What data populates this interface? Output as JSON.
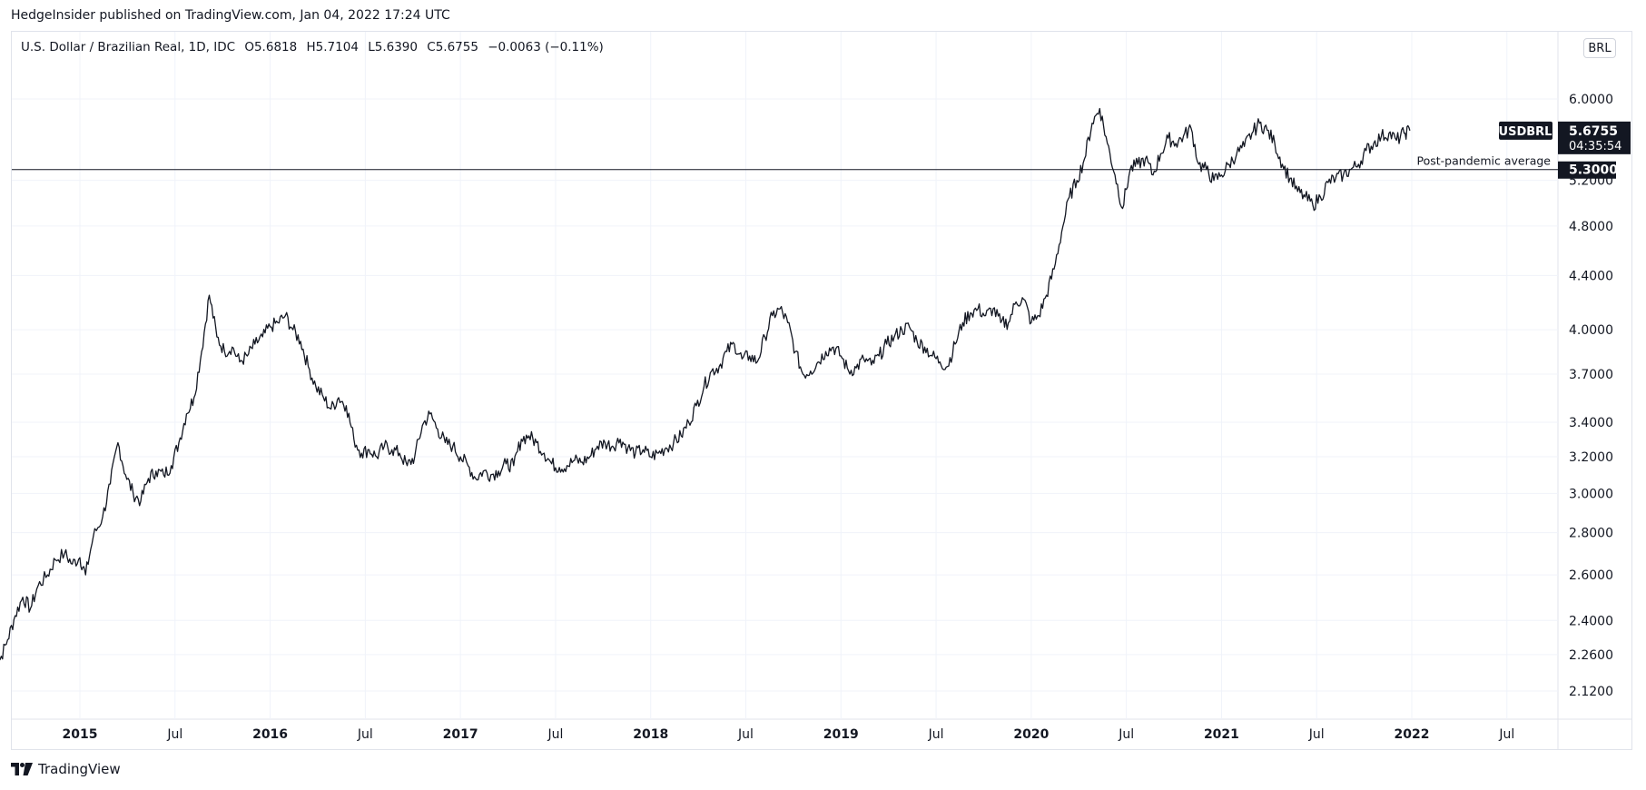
{
  "header": {
    "published": "HedgeInsider published on TradingView.com, Jan 04, 2022 17:24 UTC"
  },
  "legend": {
    "title": "U.S. Dollar / Brazilian Real, 1D, IDC",
    "open": "O5.6818",
    "high": "H5.7104",
    "low": "L5.6390",
    "close": "C5.6755",
    "change": "−0.0063 (−0.11%)"
  },
  "currency_button": "BRL",
  "price_badge": {
    "symbol": "USDBRL",
    "price": "5.6755",
    "countdown": "04:35:54"
  },
  "hline": {
    "label": "Post-pandemic average",
    "value_label": "5.3000",
    "value": 5.3
  },
  "footer": {
    "brand": "TradingView"
  },
  "colors": {
    "line": "#131722",
    "grid": "#f0f3fa",
    "badge_bg": "#131722",
    "badge_text": "#ffffff"
  },
  "chart_data": {
    "type": "line",
    "symbol": "USDBRL",
    "y_scale": "log",
    "ylim": [
      2.0,
      6.3
    ],
    "x_range": [
      2014.55,
      2022.75
    ],
    "y_ticks": [
      "2.1200",
      "2.2600",
      "2.4000",
      "2.6000",
      "2.8000",
      "3.0000",
      "3.2000",
      "3.4000",
      "3.7000",
      "4.0000",
      "4.4000",
      "4.8000",
      "5.2000",
      "6.0000"
    ],
    "x_ticks": [
      {
        "t": 2015.0,
        "label": "2015",
        "bold": true
      },
      {
        "t": 2015.5,
        "label": "Jul",
        "bold": false
      },
      {
        "t": 2016.0,
        "label": "2016",
        "bold": true
      },
      {
        "t": 2016.5,
        "label": "Jul",
        "bold": false
      },
      {
        "t": 2017.0,
        "label": "2017",
        "bold": true
      },
      {
        "t": 2017.5,
        "label": "Jul",
        "bold": false
      },
      {
        "t": 2018.0,
        "label": "2018",
        "bold": true
      },
      {
        "t": 2018.5,
        "label": "Jul",
        "bold": false
      },
      {
        "t": 2019.0,
        "label": "2019",
        "bold": true
      },
      {
        "t": 2019.5,
        "label": "Jul",
        "bold": false
      },
      {
        "t": 2020.0,
        "label": "2020",
        "bold": true
      },
      {
        "t": 2020.5,
        "label": "Jul",
        "bold": false
      },
      {
        "t": 2021.0,
        "label": "2021",
        "bold": true
      },
      {
        "t": 2021.5,
        "label": "Jul",
        "bold": false
      },
      {
        "t": 2022.0,
        "label": "2022",
        "bold": true
      },
      {
        "t": 2022.5,
        "label": "Jul",
        "bold": false
      }
    ],
    "series": [
      {
        "points": [
          [
            2014.55,
            2.28
          ],
          [
            2014.58,
            2.24
          ],
          [
            2014.62,
            2.32
          ],
          [
            2014.66,
            2.42
          ],
          [
            2014.7,
            2.5
          ],
          [
            2014.74,
            2.45
          ],
          [
            2014.78,
            2.55
          ],
          [
            2014.83,
            2.6
          ],
          [
            2014.87,
            2.67
          ],
          [
            2014.92,
            2.7
          ],
          [
            2014.96,
            2.65
          ],
          [
            2015.0,
            2.68
          ],
          [
            2015.03,
            2.6
          ],
          [
            2015.07,
            2.78
          ],
          [
            2015.12,
            2.88
          ],
          [
            2015.16,
            3.05
          ],
          [
            2015.2,
            3.28
          ],
          [
            2015.24,
            3.1
          ],
          [
            2015.28,
            3.0
          ],
          [
            2015.32,
            2.96
          ],
          [
            2015.36,
            3.08
          ],
          [
            2015.4,
            3.12
          ],
          [
            2015.44,
            3.1
          ],
          [
            2015.48,
            3.15
          ],
          [
            2015.52,
            3.28
          ],
          [
            2015.56,
            3.45
          ],
          [
            2015.6,
            3.55
          ],
          [
            2015.64,
            3.85
          ],
          [
            2015.68,
            4.25
          ],
          [
            2015.72,
            3.95
          ],
          [
            2015.76,
            3.85
          ],
          [
            2015.8,
            3.88
          ],
          [
            2015.84,
            3.78
          ],
          [
            2015.88,
            3.82
          ],
          [
            2015.92,
            3.9
          ],
          [
            2015.96,
            3.95
          ],
          [
            2016.0,
            4.02
          ],
          [
            2016.04,
            4.05
          ],
          [
            2016.08,
            4.1
          ],
          [
            2016.12,
            4.0
          ],
          [
            2016.16,
            3.92
          ],
          [
            2016.2,
            3.75
          ],
          [
            2016.24,
            3.62
          ],
          [
            2016.28,
            3.55
          ],
          [
            2016.32,
            3.48
          ],
          [
            2016.36,
            3.55
          ],
          [
            2016.4,
            3.5
          ],
          [
            2016.44,
            3.3
          ],
          [
            2016.48,
            3.22
          ],
          [
            2016.52,
            3.24
          ],
          [
            2016.56,
            3.2
          ],
          [
            2016.6,
            3.26
          ],
          [
            2016.64,
            3.24
          ],
          [
            2016.68,
            3.22
          ],
          [
            2016.72,
            3.15
          ],
          [
            2016.76,
            3.2
          ],
          [
            2016.8,
            3.38
          ],
          [
            2016.84,
            3.45
          ],
          [
            2016.88,
            3.36
          ],
          [
            2016.92,
            3.28
          ],
          [
            2016.96,
            3.26
          ],
          [
            2017.0,
            3.2
          ],
          [
            2017.04,
            3.15
          ],
          [
            2017.08,
            3.08
          ],
          [
            2017.12,
            3.12
          ],
          [
            2017.16,
            3.1
          ],
          [
            2017.2,
            3.12
          ],
          [
            2017.24,
            3.16
          ],
          [
            2017.28,
            3.15
          ],
          [
            2017.32,
            3.3
          ],
          [
            2017.36,
            3.32
          ],
          [
            2017.4,
            3.28
          ],
          [
            2017.44,
            3.22
          ],
          [
            2017.48,
            3.16
          ],
          [
            2017.52,
            3.14
          ],
          [
            2017.56,
            3.15
          ],
          [
            2017.6,
            3.18
          ],
          [
            2017.64,
            3.17
          ],
          [
            2017.68,
            3.2
          ],
          [
            2017.72,
            3.26
          ],
          [
            2017.76,
            3.28
          ],
          [
            2017.8,
            3.26
          ],
          [
            2017.84,
            3.3
          ],
          [
            2017.88,
            3.25
          ],
          [
            2017.92,
            3.22
          ],
          [
            2017.96,
            3.24
          ],
          [
            2018.0,
            3.2
          ],
          [
            2018.04,
            3.22
          ],
          [
            2018.08,
            3.25
          ],
          [
            2018.12,
            3.28
          ],
          [
            2018.16,
            3.32
          ],
          [
            2018.2,
            3.4
          ],
          [
            2018.24,
            3.5
          ],
          [
            2018.28,
            3.62
          ],
          [
            2018.32,
            3.72
          ],
          [
            2018.36,
            3.75
          ],
          [
            2018.4,
            3.85
          ],
          [
            2018.44,
            3.9
          ],
          [
            2018.48,
            3.8
          ],
          [
            2018.52,
            3.82
          ],
          [
            2018.56,
            3.78
          ],
          [
            2018.6,
            3.95
          ],
          [
            2018.64,
            4.1
          ],
          [
            2018.68,
            4.15
          ],
          [
            2018.72,
            4.05
          ],
          [
            2018.76,
            3.85
          ],
          [
            2018.8,
            3.7
          ],
          [
            2018.84,
            3.72
          ],
          [
            2018.88,
            3.78
          ],
          [
            2018.92,
            3.85
          ],
          [
            2018.96,
            3.88
          ],
          [
            2019.0,
            3.82
          ],
          [
            2019.04,
            3.72
          ],
          [
            2019.08,
            3.74
          ],
          [
            2019.12,
            3.8
          ],
          [
            2019.16,
            3.76
          ],
          [
            2019.2,
            3.82
          ],
          [
            2019.24,
            3.9
          ],
          [
            2019.28,
            3.95
          ],
          [
            2019.32,
            4.0
          ],
          [
            2019.36,
            4.02
          ],
          [
            2019.4,
            3.92
          ],
          [
            2019.44,
            3.88
          ],
          [
            2019.48,
            3.82
          ],
          [
            2019.52,
            3.78
          ],
          [
            2019.56,
            3.75
          ],
          [
            2019.6,
            3.9
          ],
          [
            2019.64,
            4.05
          ],
          [
            2019.68,
            4.12
          ],
          [
            2019.72,
            4.15
          ],
          [
            2019.76,
            4.1
          ],
          [
            2019.8,
            4.15
          ],
          [
            2019.84,
            4.05
          ],
          [
            2019.88,
            4.05
          ],
          [
            2019.92,
            4.2
          ],
          [
            2019.96,
            4.22
          ],
          [
            2020.0,
            4.05
          ],
          [
            2020.04,
            4.1
          ],
          [
            2020.08,
            4.25
          ],
          [
            2020.12,
            4.45
          ],
          [
            2020.16,
            4.75
          ],
          [
            2020.2,
            5.05
          ],
          [
            2020.24,
            5.2
          ],
          [
            2020.28,
            5.4
          ],
          [
            2020.32,
            5.75
          ],
          [
            2020.36,
            5.9
          ],
          [
            2020.4,
            5.55
          ],
          [
            2020.44,
            5.25
          ],
          [
            2020.48,
            4.95
          ],
          [
            2020.52,
            5.3
          ],
          [
            2020.56,
            5.35
          ],
          [
            2020.6,
            5.4
          ],
          [
            2020.64,
            5.25
          ],
          [
            2020.68,
            5.45
          ],
          [
            2020.72,
            5.6
          ],
          [
            2020.76,
            5.55
          ],
          [
            2020.8,
            5.62
          ],
          [
            2020.84,
            5.7
          ],
          [
            2020.88,
            5.35
          ],
          [
            2020.92,
            5.3
          ],
          [
            2020.96,
            5.2
          ],
          [
            2021.0,
            5.25
          ],
          [
            2021.04,
            5.35
          ],
          [
            2021.08,
            5.45
          ],
          [
            2021.12,
            5.52
          ],
          [
            2021.16,
            5.65
          ],
          [
            2021.2,
            5.75
          ],
          [
            2021.24,
            5.68
          ],
          [
            2021.28,
            5.55
          ],
          [
            2021.32,
            5.35
          ],
          [
            2021.36,
            5.22
          ],
          [
            2021.4,
            5.1
          ],
          [
            2021.44,
            5.05
          ],
          [
            2021.48,
            4.98
          ],
          [
            2021.52,
            5.05
          ],
          [
            2021.56,
            5.18
          ],
          [
            2021.6,
            5.22
          ],
          [
            2021.64,
            5.25
          ],
          [
            2021.68,
            5.3
          ],
          [
            2021.72,
            5.35
          ],
          [
            2021.76,
            5.48
          ],
          [
            2021.8,
            5.55
          ],
          [
            2021.84,
            5.62
          ],
          [
            2021.88,
            5.65
          ],
          [
            2021.92,
            5.58
          ],
          [
            2021.96,
            5.65
          ],
          [
            2021.99,
            5.6755
          ]
        ]
      }
    ]
  }
}
